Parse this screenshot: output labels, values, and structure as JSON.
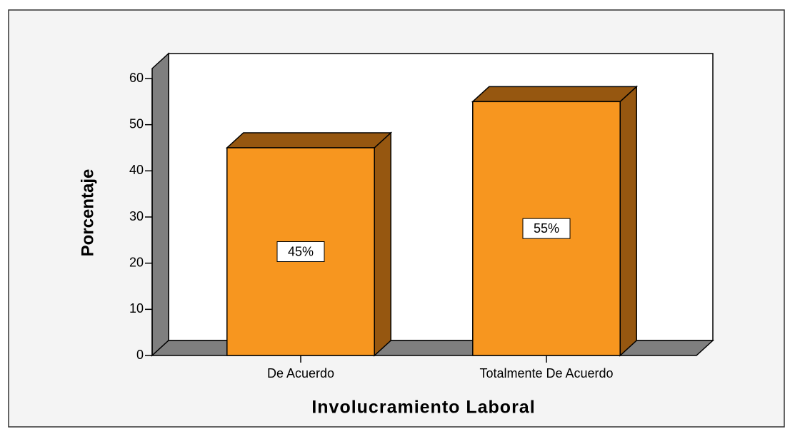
{
  "chart_data": {
    "type": "bar3d",
    "categories": [
      "De Acuerdo",
      "Totalmente De Acuerdo"
    ],
    "values": [
      45,
      55
    ],
    "value_labels": [
      "45%",
      "55%"
    ],
    "color": "#f7961f",
    "side_color": "#965710",
    "ylim": [
      0,
      60
    ],
    "yticks": [
      0,
      10,
      20,
      30,
      40,
      50,
      60
    ],
    "xlabel": "Involucramiento Laboral",
    "ylabel": "Porcentaje"
  }
}
